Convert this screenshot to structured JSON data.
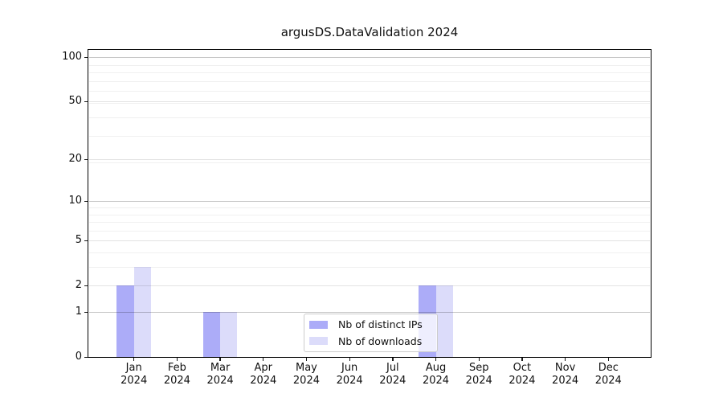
{
  "chart_data": {
    "type": "bar",
    "title": "argusDS.DataValidation 2024",
    "months": [
      "Jan",
      "Feb",
      "Mar",
      "Apr",
      "May",
      "Jun",
      "Jul",
      "Aug",
      "Sep",
      "Oct",
      "Nov",
      "Dec"
    ],
    "year": "2024",
    "y_scale": "log10(value+1)",
    "y_ticks": [
      0,
      1,
      2,
      5,
      10,
      20,
      50,
      100
    ],
    "ylim": [
      0,
      112
    ],
    "grid": true,
    "legend_position": "lower-center",
    "series": [
      {
        "name": "Nb of distinct IPs",
        "color": "#acacf8",
        "values": [
          2,
          0,
          1,
          0,
          0,
          0,
          0,
          2,
          0,
          0,
          0,
          0
        ]
      },
      {
        "name": "Nb of downloads",
        "color": "#dcdcfa",
        "values": [
          3,
          0,
          1,
          0,
          0,
          0,
          0,
          2,
          0,
          0,
          0,
          0
        ]
      }
    ]
  }
}
